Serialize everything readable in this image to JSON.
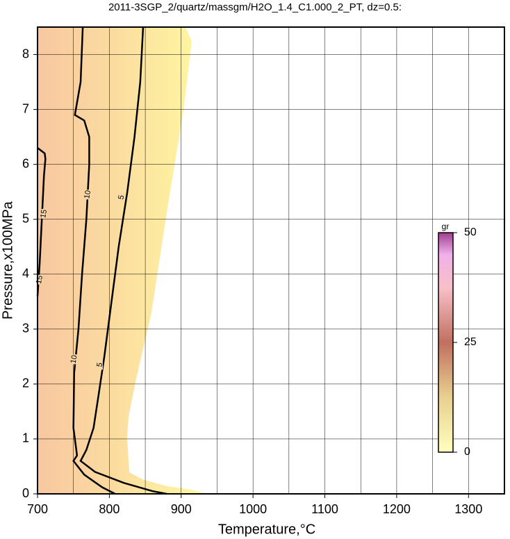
{
  "chart_data": {
    "type": "contour",
    "title": "2011-3SGP_2/quartz/massgm/H2O_1.4_C1.000_2_PT, dz=0.5:",
    "x_label": "Temperature,°C",
    "y_label": "Pressure,x100MPa",
    "xlim": [
      700,
      1350
    ],
    "ylim": [
      0,
      8.5
    ],
    "xticks": [
      700,
      800,
      900,
      1000,
      1100,
      1200,
      1300
    ],
    "xminor_ticks": [
      750,
      850,
      950,
      1050,
      1150,
      1250,
      1350
    ],
    "yticks": [
      0,
      1,
      2,
      3,
      4,
      5,
      6,
      7,
      8
    ],
    "grid": true,
    "series": [
      {
        "level": 15,
        "color": "#000000",
        "x": [
          700,
          703,
          706,
          709,
          711,
          710,
          700
        ],
        "y": [
          3.6,
          4.2,
          5.0,
          5.8,
          6.1,
          6.2,
          6.3
        ],
        "label_x": [
          703,
          709
        ],
        "label_y": [
          3.9,
          5.1
        ]
      },
      {
        "level": 10,
        "color": "#000000",
        "x": [
          763,
          760,
          752,
          765,
          772,
          772,
          768,
          762,
          757,
          751,
          750,
          755,
          750,
          765,
          790,
          808
        ],
        "y": [
          8.5,
          7.5,
          6.9,
          6.8,
          6.5,
          6.0,
          5.0,
          4.0,
          3.0,
          2.2,
          1.2,
          0.7,
          0.6,
          0.35,
          0.12,
          0
        ],
        "label_x": [
          751,
          770
        ],
        "label_y": [
          2.45,
          5.45
        ]
      },
      {
        "level": 5,
        "color": "#000000",
        "x": [
          847,
          843,
          835,
          825,
          813,
          803,
          793,
          785,
          778,
          768,
          760,
          780,
          820,
          860,
          880
        ],
        "y": [
          8.5,
          7.5,
          6.5,
          5.5,
          4.5,
          3.5,
          2.5,
          1.8,
          1.2,
          0.8,
          0.6,
          0.4,
          0.2,
          0.05,
          0
        ],
        "label_x": [
          787,
          817
        ],
        "label_y": [
          2.35,
          5.4
        ]
      }
    ],
    "colorbar": {
      "label": "gr",
      "lim": [
        0,
        50
      ],
      "ticks": [
        0,
        25,
        50
      ]
    }
  }
}
